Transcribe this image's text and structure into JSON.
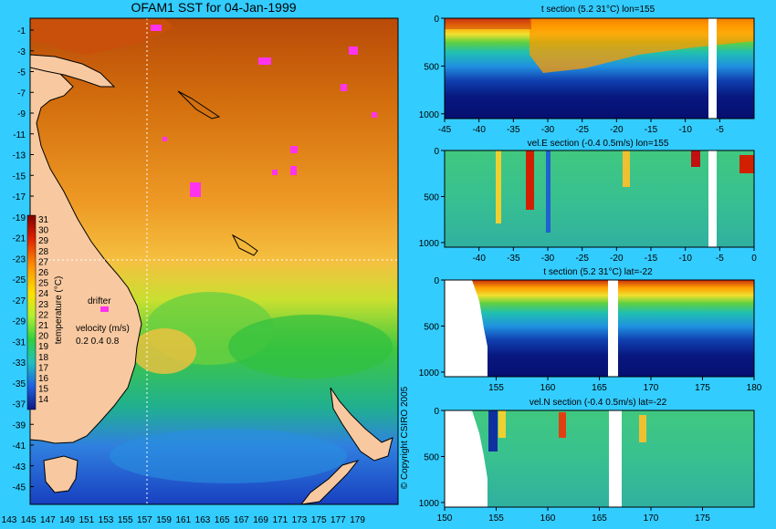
{
  "map": {
    "title": "OFAM1 SST for 04-Jan-1999",
    "lat_ticks": [
      "-1",
      "-3",
      "-5",
      "-7",
      "-9",
      "-11",
      "-13",
      "-15",
      "-17",
      "-19",
      "-21",
      "-23",
      "-25",
      "-27",
      "-29",
      "-31",
      "-33",
      "-35",
      "-37",
      "-39",
      "-41",
      "-43",
      "-45"
    ],
    "lon_ticks": [
      "143",
      "145",
      "147",
      "149",
      "151",
      "153",
      "155",
      "157",
      "159",
      "161",
      "163",
      "165",
      "167",
      "169",
      "171",
      "173",
      "175",
      "177",
      "179"
    ],
    "colorbar_values": [
      "31",
      "30",
      "29",
      "28",
      "27",
      "26",
      "25",
      "24",
      "23",
      "22",
      "21",
      "20",
      "19",
      "18",
      "17",
      "16",
      "15",
      "14"
    ],
    "colorbar_label": "temperature (°C)",
    "drifter_label": "drifter",
    "velocity_label": "velocity (m/s)",
    "velocity_scale": "0.2 0.4 0.8",
    "copyright": "© Copyright CSIRO 2005",
    "section_lon": 155,
    "section_lat": -22,
    "colors": {
      "background": "#33ccff",
      "land": "#f8c9a0",
      "warm": "#c8500a",
      "mid": "#f0a030",
      "cool": "#30c040",
      "cold": "#1050d0",
      "drifter": "#ff33ee"
    }
  },
  "chart_data": [
    {
      "type": "heatmap",
      "title": "t section (5.2      31°C) lon=155",
      "xlim": [
        -45,
        0
      ],
      "x_ticks": [
        "-45",
        "-40",
        "-35",
        "-30",
        "-25",
        "-20",
        "-15",
        "-10",
        "-5"
      ],
      "x_tick_values": [
        -45,
        -40,
        -35,
        -30,
        -25,
        -20,
        -15,
        -10,
        -5
      ],
      "ylim": [
        0,
        1050
      ],
      "y_ticks": [
        "0",
        "500",
        "1000"
      ],
      "y_tick_values": [
        0,
        500,
        1000
      ],
      "variable": "temperature"
    },
    {
      "type": "heatmap",
      "title": "vel.E section (-0.4      0.5m/s) lon=155",
      "xlim": [
        -45,
        0
      ],
      "x_ticks": [
        "-40",
        "-35",
        "-30",
        "-25",
        "-20",
        "-15",
        "-10",
        "-5",
        "0"
      ],
      "x_tick_values": [
        -40,
        -35,
        -30,
        -25,
        -20,
        -15,
        -10,
        -5,
        0
      ],
      "ylim": [
        0,
        1050
      ],
      "y_ticks": [
        "0",
        "500",
        "1000"
      ],
      "y_tick_values": [
        0,
        500,
        1000
      ],
      "variable": "eastward velocity"
    },
    {
      "type": "heatmap",
      "title": "t section (5.2      31°C) lat=-22",
      "xlim": [
        150,
        180
      ],
      "x_ticks": [
        "155",
        "160",
        "165",
        "170",
        "175",
        "180"
      ],
      "x_tick_values": [
        155,
        160,
        165,
        170,
        175,
        180
      ],
      "ylim": [
        0,
        1050
      ],
      "y_ticks": [
        "0",
        "500",
        "1000"
      ],
      "y_tick_values": [
        0,
        500,
        1000
      ],
      "variable": "temperature"
    },
    {
      "type": "heatmap",
      "title": "vel.N section (-0.4      0.5m/s) lat=-22",
      "xlim": [
        150,
        180
      ],
      "x_ticks": [
        "150",
        "155",
        "160",
        "165",
        "170",
        "175"
      ],
      "x_tick_values": [
        150,
        155,
        160,
        165,
        170,
        175
      ],
      "ylim": [
        0,
        1050
      ],
      "y_ticks": [
        "0",
        "500",
        "1000"
      ],
      "y_tick_values": [
        0,
        500,
        1000
      ],
      "variable": "northward velocity"
    }
  ]
}
